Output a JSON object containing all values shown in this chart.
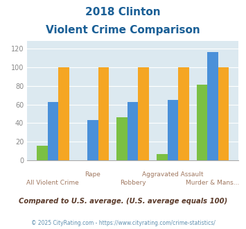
{
  "title_line1": "2018 Clinton",
  "title_line2": "Violent Crime Comparison",
  "categories_top": [
    "",
    "Rape",
    "",
    "Aggravated Assault",
    ""
  ],
  "categories_bottom": [
    "All Violent Crime",
    "",
    "Robbery",
    "",
    "Murder & Mans..."
  ],
  "clinton": [
    16,
    0,
    46,
    7,
    81
  ],
  "mississippi": [
    63,
    43,
    63,
    65,
    116
  ],
  "national": [
    100,
    100,
    100,
    100,
    100
  ],
  "clinton_color": "#7bc043",
  "mississippi_color": "#4a90d9",
  "national_color": "#f5a623",
  "ylim": [
    0,
    128
  ],
  "yticks": [
    0,
    20,
    40,
    60,
    80,
    100,
    120
  ],
  "bg_color": "#dce9f0",
  "note": "Compared to U.S. average. (U.S. average equals 100)",
  "copyright": "© 2025 CityRating.com - https://www.cityrating.com/crime-statistics/",
  "title_color": "#1a5f96",
  "xlabel_top_color": "#a07860",
  "xlabel_bot_color": "#a07860",
  "note_color": "#5a3a2a",
  "copyright_color": "#6090b0",
  "legend_label_color": "#222222",
  "ytick_color": "#888888",
  "grid_color": "#ffffff"
}
